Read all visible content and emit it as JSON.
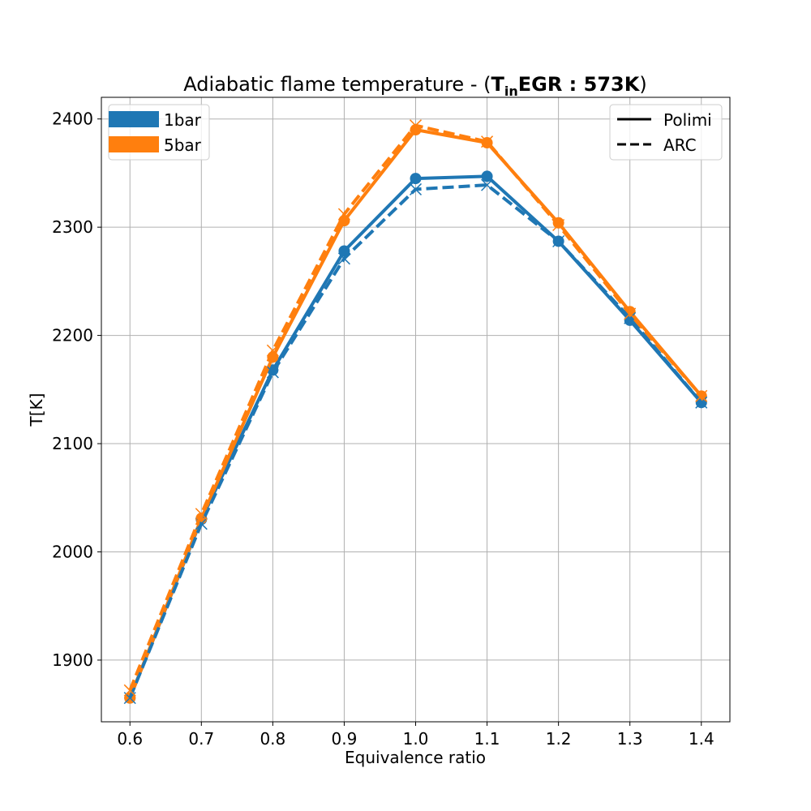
{
  "chart_data": {
    "type": "line",
    "title": {
      "prefix": "Adiabatic flame temperature - (",
      "bold_main": "T",
      "bold_sub": "in",
      "bold_rest": "EGR : 573K",
      "suffix": ")"
    },
    "xlabel": "Equivalence ratio",
    "ylabel": "T[K]",
    "x": [
      0.6,
      0.7,
      0.8,
      0.9,
      1.0,
      1.1,
      1.2,
      1.3,
      1.4
    ],
    "x_tick_labels": [
      "0.6",
      "0.7",
      "0.8",
      "0.9",
      "1.0",
      "1.1",
      "1.2",
      "1.3",
      "1.4"
    ],
    "y_ticks": [
      1900,
      2000,
      2100,
      2200,
      2300,
      2400
    ],
    "y_tick_labels": [
      "1900",
      "2000",
      "2100",
      "2200",
      "2300",
      "2400"
    ],
    "xlim": [
      0.56,
      1.44
    ],
    "ylim": [
      1843,
      2420
    ],
    "grid": true,
    "series": [
      {
        "name": "1bar",
        "mechanism": "Polimi",
        "color": "#1f77b4",
        "style": "solid",
        "marker": "circle",
        "values": [
          1865,
          2030,
          2168,
          2278,
          2345,
          2347,
          2287,
          2214,
          2138
        ]
      },
      {
        "name": "5bar",
        "mechanism": "Polimi",
        "color": "#ff7f0e",
        "style": "solid",
        "marker": "circle",
        "values": [
          1865,
          2031,
          2180,
          2306,
          2390,
          2378,
          2304,
          2222,
          2144
        ]
      },
      {
        "name": "1bar",
        "mechanism": "ARC",
        "color": "#1f77b4",
        "style": "dashed",
        "marker": "x",
        "values": [
          1865,
          2026,
          2166,
          2271,
          2335,
          2339,
          2287,
          2216,
          2138
        ]
      },
      {
        "name": "5bar",
        "mechanism": "ARC",
        "color": "#ff7f0e",
        "style": "dashed",
        "marker": "x",
        "values": [
          1872,
          2035,
          2186,
          2312,
          2394,
          2379,
          2302,
          2220,
          2144
        ]
      }
    ],
    "legends": [
      {
        "placement": "top-left",
        "entries": [
          {
            "label": "1bar",
            "color": "#1f77b4",
            "kind": "patch"
          },
          {
            "label": "5bar",
            "color": "#ff7f0e",
            "kind": "patch"
          }
        ]
      },
      {
        "placement": "top-right",
        "entries": [
          {
            "label": "Polimi",
            "color": "#000000",
            "kind": "solid"
          },
          {
            "label": "ARC",
            "color": "#000000",
            "kind": "dashed"
          }
        ]
      }
    ]
  }
}
